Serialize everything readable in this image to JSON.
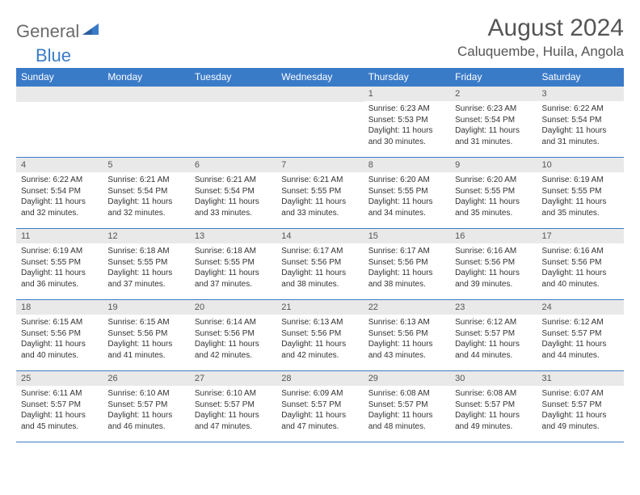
{
  "logo": {
    "part1": "General",
    "part2": "Blue"
  },
  "title": "August 2024",
  "location": "Caluquembe, Huila, Angola",
  "colors": {
    "header_bg": "#3a7bc8",
    "header_text": "#ffffff",
    "daynum_bg": "#e9e9e9",
    "border": "#3a7bc8",
    "body_text": "#333333",
    "logo_gray": "#6b6b6b",
    "logo_blue": "#3a7bc8"
  },
  "weekdays": [
    "Sunday",
    "Monday",
    "Tuesday",
    "Wednesday",
    "Thursday",
    "Friday",
    "Saturday"
  ],
  "weeks": [
    [
      null,
      null,
      null,
      null,
      {
        "n": "1",
        "sr": "6:23 AM",
        "ss": "5:53 PM",
        "dl": "11 hours and 30 minutes."
      },
      {
        "n": "2",
        "sr": "6:23 AM",
        "ss": "5:54 PM",
        "dl": "11 hours and 31 minutes."
      },
      {
        "n": "3",
        "sr": "6:22 AM",
        "ss": "5:54 PM",
        "dl": "11 hours and 31 minutes."
      }
    ],
    [
      {
        "n": "4",
        "sr": "6:22 AM",
        "ss": "5:54 PM",
        "dl": "11 hours and 32 minutes."
      },
      {
        "n": "5",
        "sr": "6:21 AM",
        "ss": "5:54 PM",
        "dl": "11 hours and 32 minutes."
      },
      {
        "n": "6",
        "sr": "6:21 AM",
        "ss": "5:54 PM",
        "dl": "11 hours and 33 minutes."
      },
      {
        "n": "7",
        "sr": "6:21 AM",
        "ss": "5:55 PM",
        "dl": "11 hours and 33 minutes."
      },
      {
        "n": "8",
        "sr": "6:20 AM",
        "ss": "5:55 PM",
        "dl": "11 hours and 34 minutes."
      },
      {
        "n": "9",
        "sr": "6:20 AM",
        "ss": "5:55 PM",
        "dl": "11 hours and 35 minutes."
      },
      {
        "n": "10",
        "sr": "6:19 AM",
        "ss": "5:55 PM",
        "dl": "11 hours and 35 minutes."
      }
    ],
    [
      {
        "n": "11",
        "sr": "6:19 AM",
        "ss": "5:55 PM",
        "dl": "11 hours and 36 minutes."
      },
      {
        "n": "12",
        "sr": "6:18 AM",
        "ss": "5:55 PM",
        "dl": "11 hours and 37 minutes."
      },
      {
        "n": "13",
        "sr": "6:18 AM",
        "ss": "5:55 PM",
        "dl": "11 hours and 37 minutes."
      },
      {
        "n": "14",
        "sr": "6:17 AM",
        "ss": "5:56 PM",
        "dl": "11 hours and 38 minutes."
      },
      {
        "n": "15",
        "sr": "6:17 AM",
        "ss": "5:56 PM",
        "dl": "11 hours and 38 minutes."
      },
      {
        "n": "16",
        "sr": "6:16 AM",
        "ss": "5:56 PM",
        "dl": "11 hours and 39 minutes."
      },
      {
        "n": "17",
        "sr": "6:16 AM",
        "ss": "5:56 PM",
        "dl": "11 hours and 40 minutes."
      }
    ],
    [
      {
        "n": "18",
        "sr": "6:15 AM",
        "ss": "5:56 PM",
        "dl": "11 hours and 40 minutes."
      },
      {
        "n": "19",
        "sr": "6:15 AM",
        "ss": "5:56 PM",
        "dl": "11 hours and 41 minutes."
      },
      {
        "n": "20",
        "sr": "6:14 AM",
        "ss": "5:56 PM",
        "dl": "11 hours and 42 minutes."
      },
      {
        "n": "21",
        "sr": "6:13 AM",
        "ss": "5:56 PM",
        "dl": "11 hours and 42 minutes."
      },
      {
        "n": "22",
        "sr": "6:13 AM",
        "ss": "5:56 PM",
        "dl": "11 hours and 43 minutes."
      },
      {
        "n": "23",
        "sr": "6:12 AM",
        "ss": "5:57 PM",
        "dl": "11 hours and 44 minutes."
      },
      {
        "n": "24",
        "sr": "6:12 AM",
        "ss": "5:57 PM",
        "dl": "11 hours and 44 minutes."
      }
    ],
    [
      {
        "n": "25",
        "sr": "6:11 AM",
        "ss": "5:57 PM",
        "dl": "11 hours and 45 minutes."
      },
      {
        "n": "26",
        "sr": "6:10 AM",
        "ss": "5:57 PM",
        "dl": "11 hours and 46 minutes."
      },
      {
        "n": "27",
        "sr": "6:10 AM",
        "ss": "5:57 PM",
        "dl": "11 hours and 47 minutes."
      },
      {
        "n": "28",
        "sr": "6:09 AM",
        "ss": "5:57 PM",
        "dl": "11 hours and 47 minutes."
      },
      {
        "n": "29",
        "sr": "6:08 AM",
        "ss": "5:57 PM",
        "dl": "11 hours and 48 minutes."
      },
      {
        "n": "30",
        "sr": "6:08 AM",
        "ss": "5:57 PM",
        "dl": "11 hours and 49 minutes."
      },
      {
        "n": "31",
        "sr": "6:07 AM",
        "ss": "5:57 PM",
        "dl": "11 hours and 49 minutes."
      }
    ]
  ],
  "labels": {
    "sunrise": "Sunrise:",
    "sunset": "Sunset:",
    "daylight": "Daylight:"
  }
}
